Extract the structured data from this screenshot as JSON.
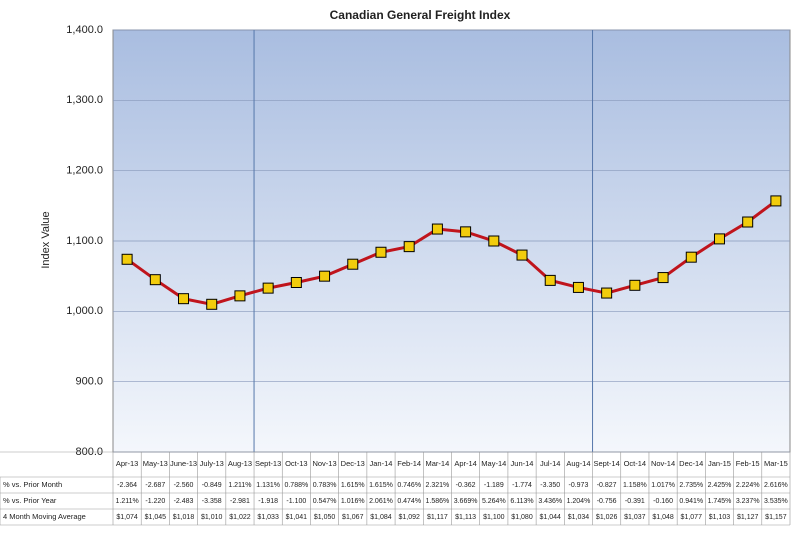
{
  "chart_data": {
    "type": "line",
    "title": "Canadian General Freight Index",
    "y_label": "Index Value",
    "categories": [
      "Apr-13",
      "May-13",
      "June-13",
      "July-13",
      "Aug-13",
      "Sept-13",
      "Oct-13",
      "Nov-13",
      "Dec-13",
      "Jan-14",
      "Feb-14",
      "Mar-14",
      "Apr-14",
      "May-14",
      "Jun-14",
      "Jul-14",
      "Aug-14",
      "Sept-14",
      "Oct-14",
      "Nov-14",
      "Dec-14",
      "Jan-15",
      "Feb-15",
      "Mar-15"
    ],
    "series": [
      {
        "name": "4 Month Moving Average",
        "color": "#c0141c",
        "values": [
          1074,
          1045,
          1018,
          1010,
          1022,
          1033,
          1041,
          1050,
          1067,
          1084,
          1092,
          1117,
          1113,
          1100,
          1080,
          1044,
          1034,
          1026,
          1037,
          1048,
          1077,
          1103,
          1127,
          1157
        ],
        "value_labels": [
          "$1,074",
          "$1,045",
          "$1,018",
          "$1,010",
          "$1,022",
          "$1,033",
          "$1,041",
          "$1,050",
          "$1,067",
          "$1,084",
          "$1,092",
          "$1,117",
          "$1,113",
          "$1,100",
          "$1,080",
          "$1,044",
          "$1,034",
          "$1,026",
          "$1,037",
          "$1,048",
          "$1,077",
          "$1,103",
          "$1,127",
          "$1,157"
        ]
      }
    ],
    "table_rows": [
      {
        "label": "% vs. Prior Month",
        "cells": [
          "-2.364",
          "-2.687",
          "-2.560",
          "-0.849",
          "1.211%",
          "1.131%",
          "0.788%",
          "0.783%",
          "1.615%",
          "1.615%",
          "0.746%",
          "2.321%",
          "-0.362",
          "-1.189",
          "-1.774",
          "-3.350",
          "-0.973",
          "-0.827",
          "1.158%",
          "1.017%",
          "2.735%",
          "2.425%",
          "2.224%",
          "2.616%"
        ]
      },
      {
        "label": "% vs. Prior Year",
        "cells": [
          "1.211%",
          "-1.220",
          "-2.483",
          "-3.358",
          "-2.981",
          "-1.918",
          "-1.100",
          "0.547%",
          "1.016%",
          "2.061%",
          "0.474%",
          "1.586%",
          "3.669%",
          "5.264%",
          "6.113%",
          "3.436%",
          "1.204%",
          "-0.756",
          "-0.391",
          "-0.160",
          "0.941%",
          "1.745%",
          "3.237%",
          "3.535%"
        ]
      }
    ],
    "ylim": [
      800,
      1400
    ],
    "yticks": [
      {
        "value": 800,
        "label": "800.0"
      },
      {
        "value": 900,
        "label": "900.0"
      },
      {
        "value": 1000,
        "label": "1,000.0"
      },
      {
        "value": 1100,
        "label": "1,100.0"
      },
      {
        "value": 1200,
        "label": "1,200.0"
      },
      {
        "value": 1300,
        "label": "1,300.0"
      },
      {
        "value": 1400,
        "label": "1,400.0"
      }
    ],
    "grid": true,
    "marker_color": "#f2cc0c"
  }
}
